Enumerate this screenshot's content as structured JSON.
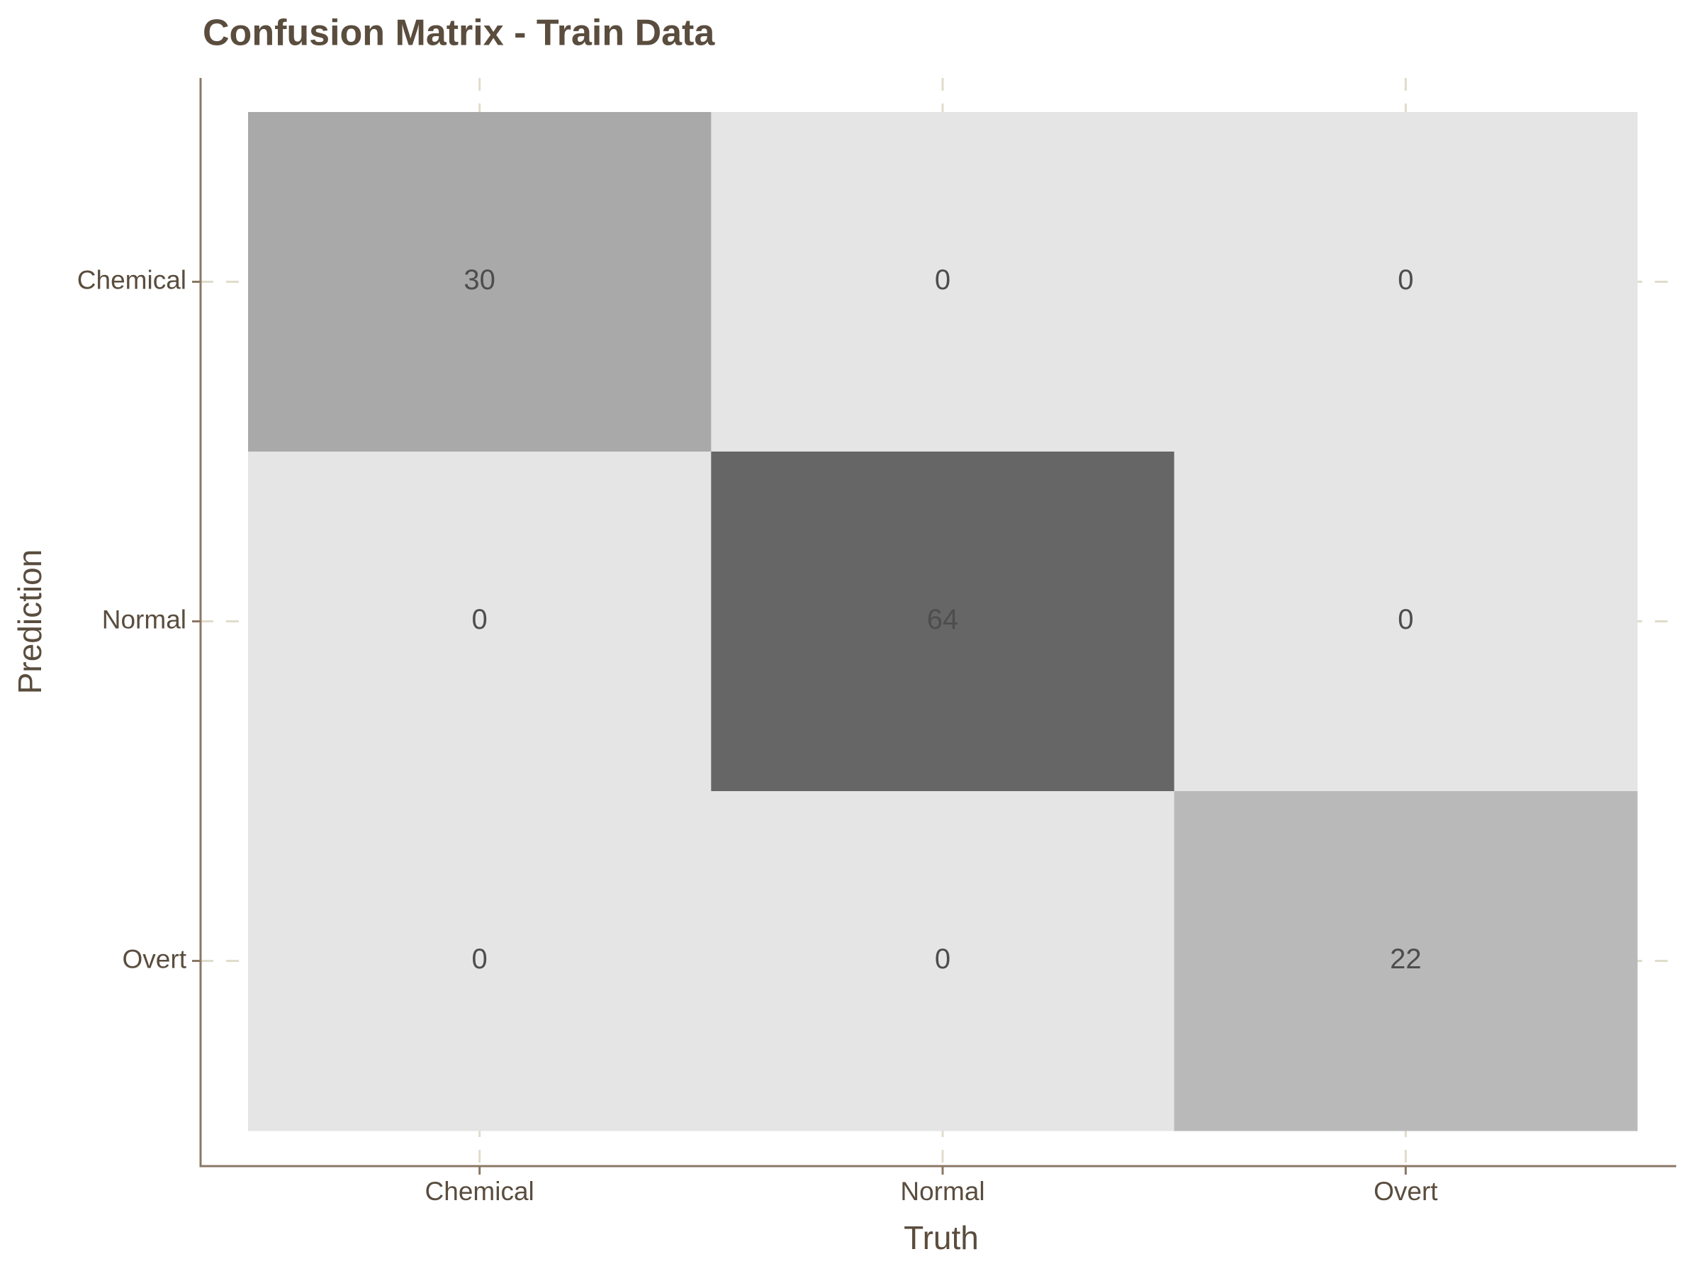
{
  "chart_data": {
    "type": "heatmap",
    "title": "Confusion Matrix - Train Data",
    "x_label": "Truth",
    "y_label": "Prediction",
    "x_categories": [
      "Chemical",
      "Normal",
      "Overt"
    ],
    "y_categories": [
      "Chemical",
      "Normal",
      "Overt"
    ],
    "values": [
      [
        30,
        0,
        0
      ],
      [
        0,
        64,
        0
      ],
      [
        0,
        0,
        22
      ]
    ],
    "colors": [
      "#e5e5e5",
      "#666666"
    ],
    "grid": true
  }
}
